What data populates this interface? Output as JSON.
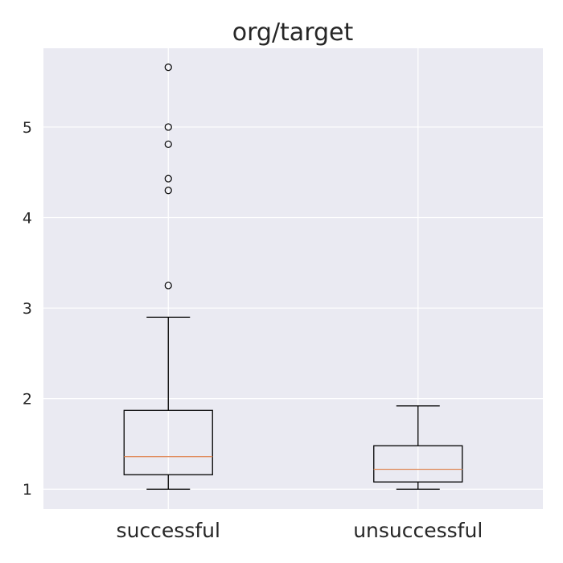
{
  "chart_data": {
    "type": "box",
    "title": "org/target",
    "xlabel": "",
    "ylabel": "",
    "categories": [
      "successful",
      "unsuccessful"
    ],
    "yticks": [
      "1",
      "2",
      "3",
      "4",
      "5"
    ],
    "ylim": [
      0.78,
      5.87
    ],
    "grid": true,
    "boxes": [
      {
        "category": "successful",
        "whisker_low": 1.0,
        "q1": 1.16,
        "median": 1.36,
        "q3": 1.87,
        "whisker_high": 2.9,
        "outliers": [
          3.25,
          4.3,
          4.43,
          4.81,
          5.0,
          5.66
        ]
      },
      {
        "category": "unsuccessful",
        "whisker_low": 1.0,
        "q1": 1.08,
        "median": 1.22,
        "q3": 1.48,
        "whisker_high": 1.92,
        "outliers": []
      }
    ],
    "colors": {
      "plot_background": "#eaeaf2",
      "grid": "#ffffff",
      "box": "#000000",
      "median": "#e08a5a",
      "text": "#262626"
    }
  }
}
